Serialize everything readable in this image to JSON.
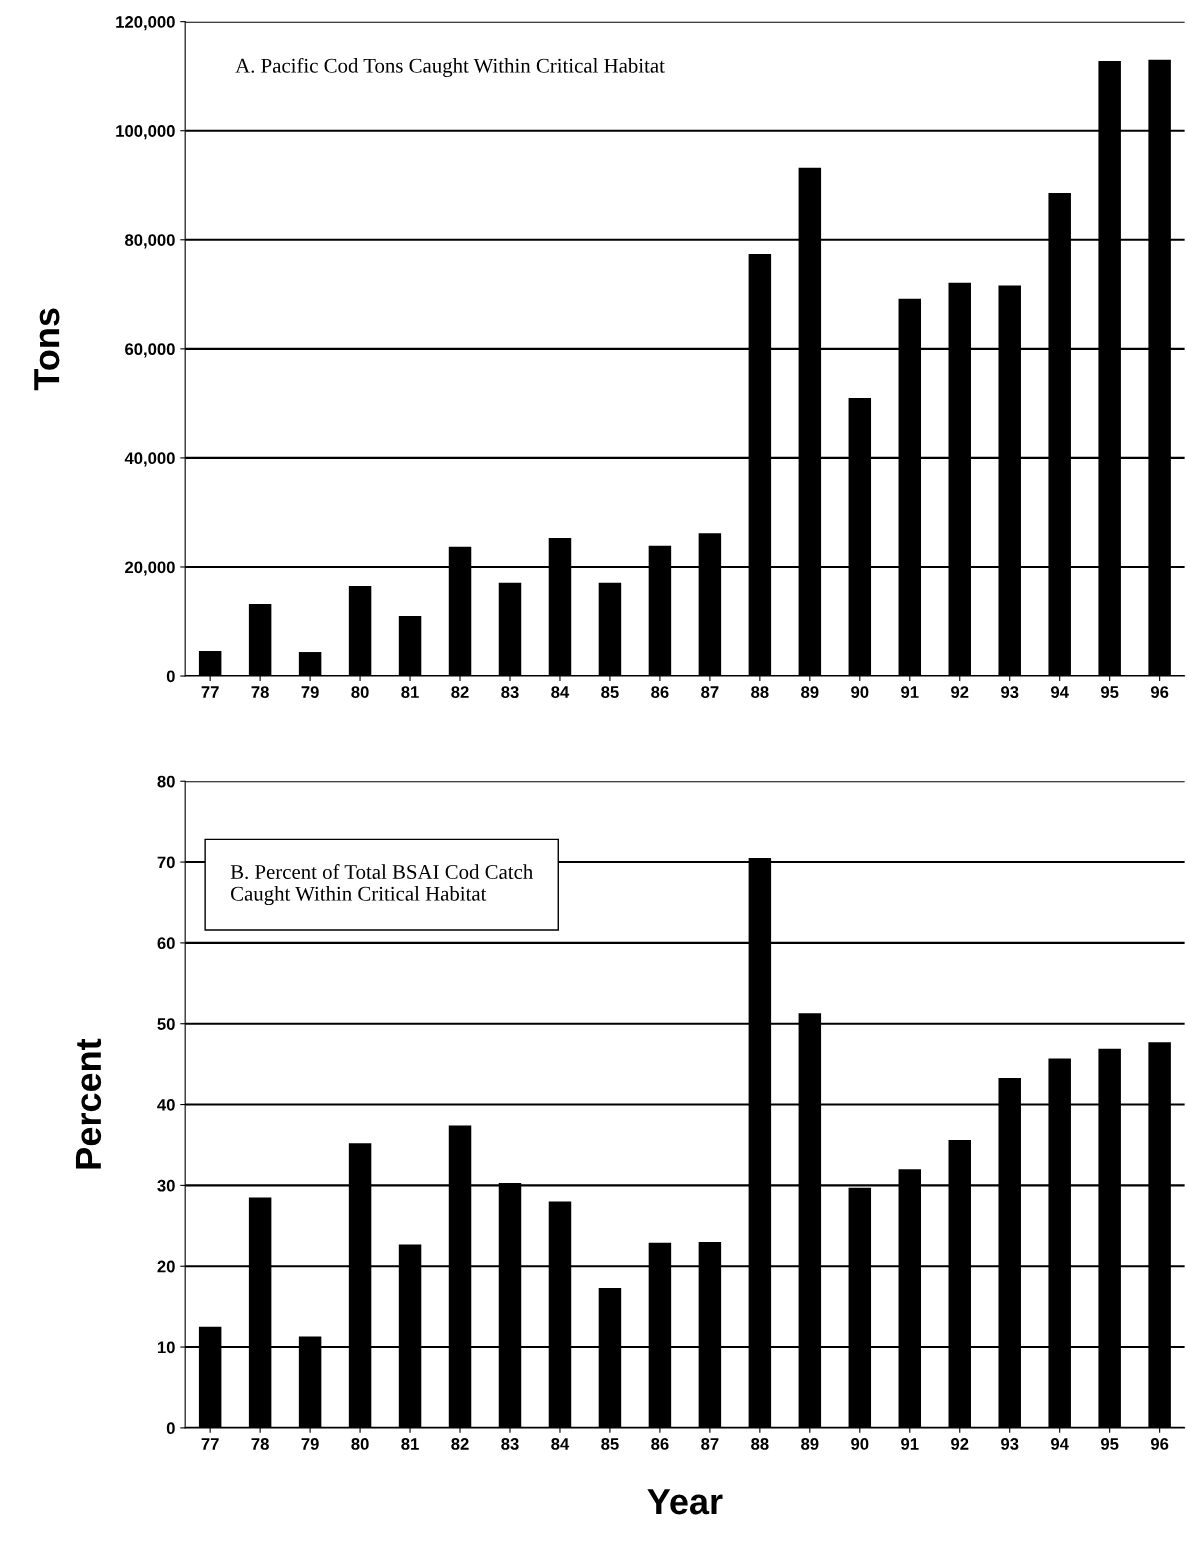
{
  "chart_data": [
    {
      "type": "bar",
      "title": "A. Pacific Cod Tons Caught Within Critical Habitat",
      "ylabel": "Tons",
      "categories": [
        "77",
        "78",
        "79",
        "80",
        "81",
        "82",
        "83",
        "84",
        "85",
        "86",
        "87",
        "88",
        "89",
        "90",
        "91",
        "92",
        "93",
        "94",
        "95",
        "96"
      ],
      "values": [
        4600,
        13200,
        4400,
        16500,
        11000,
        23700,
        17100,
        25300,
        17100,
        23900,
        26200,
        77400,
        93200,
        51000,
        69200,
        72100,
        71600,
        88600,
        112800,
        113000
      ],
      "color": "#000000",
      "ylim": [
        0,
        120000
      ],
      "yticks": [
        0,
        {
          "value": 20000,
          "label": "20,000"
        },
        {
          "value": 40000,
          "label": "40,000"
        },
        {
          "value": 60000,
          "label": "60,000"
        },
        {
          "value": 80000,
          "label": "80,000"
        },
        {
          "value": 100000,
          "label": "100,000"
        },
        {
          "value": 120000,
          "label": "120,000"
        }
      ],
      "grid": "y",
      "legend": false
    },
    {
      "type": "bar",
      "title": "B. Percent of Total BSAI Cod Catch\nCaught Within Critical Habitat",
      "ylabel": "Percent",
      "xlabel": "Year",
      "categories": [
        "77",
        "78",
        "79",
        "80",
        "81",
        "82",
        "83",
        "84",
        "85",
        "86",
        "87",
        "88",
        "89",
        "90",
        "91",
        "92",
        "93",
        "94",
        "95",
        "96"
      ],
      "values": [
        12.5,
        28.5,
        11.3,
        35.2,
        22.7,
        37.4,
        30.3,
        28,
        17.3,
        22.9,
        23,
        70.5,
        51.3,
        29.7,
        32,
        35.6,
        43.3,
        45.7,
        46.9,
        47.7
      ],
      "color": "#000000",
      "ylim": [
        0,
        80
      ],
      "yticks": [
        0,
        10,
        20,
        30,
        40,
        50,
        60,
        70,
        80
      ],
      "grid": "y",
      "legend": false
    }
  ]
}
